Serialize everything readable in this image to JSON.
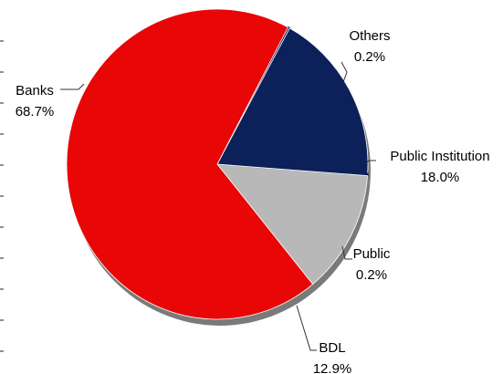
{
  "chart_data": {
    "type": "pie",
    "title": "",
    "slices": [
      {
        "label": "Others",
        "value": 0.2,
        "display": "0.2%",
        "color": "#1f2a6b"
      },
      {
        "label": "Public Institution",
        "value": 18.0,
        "display": "18.0%",
        "color": "#0c2059"
      },
      {
        "label": "Public",
        "value": 0.2,
        "display": "0.2%",
        "color": "#0c2059"
      },
      {
        "label": "BDL",
        "value": 12.9,
        "display": "12.9%",
        "color": "#b8b8b8"
      },
      {
        "label": "Banks",
        "value": 68.7,
        "display": "68.7%",
        "color": "#e80606"
      }
    ],
    "legend": "none",
    "labels": "outside with leader lines"
  }
}
